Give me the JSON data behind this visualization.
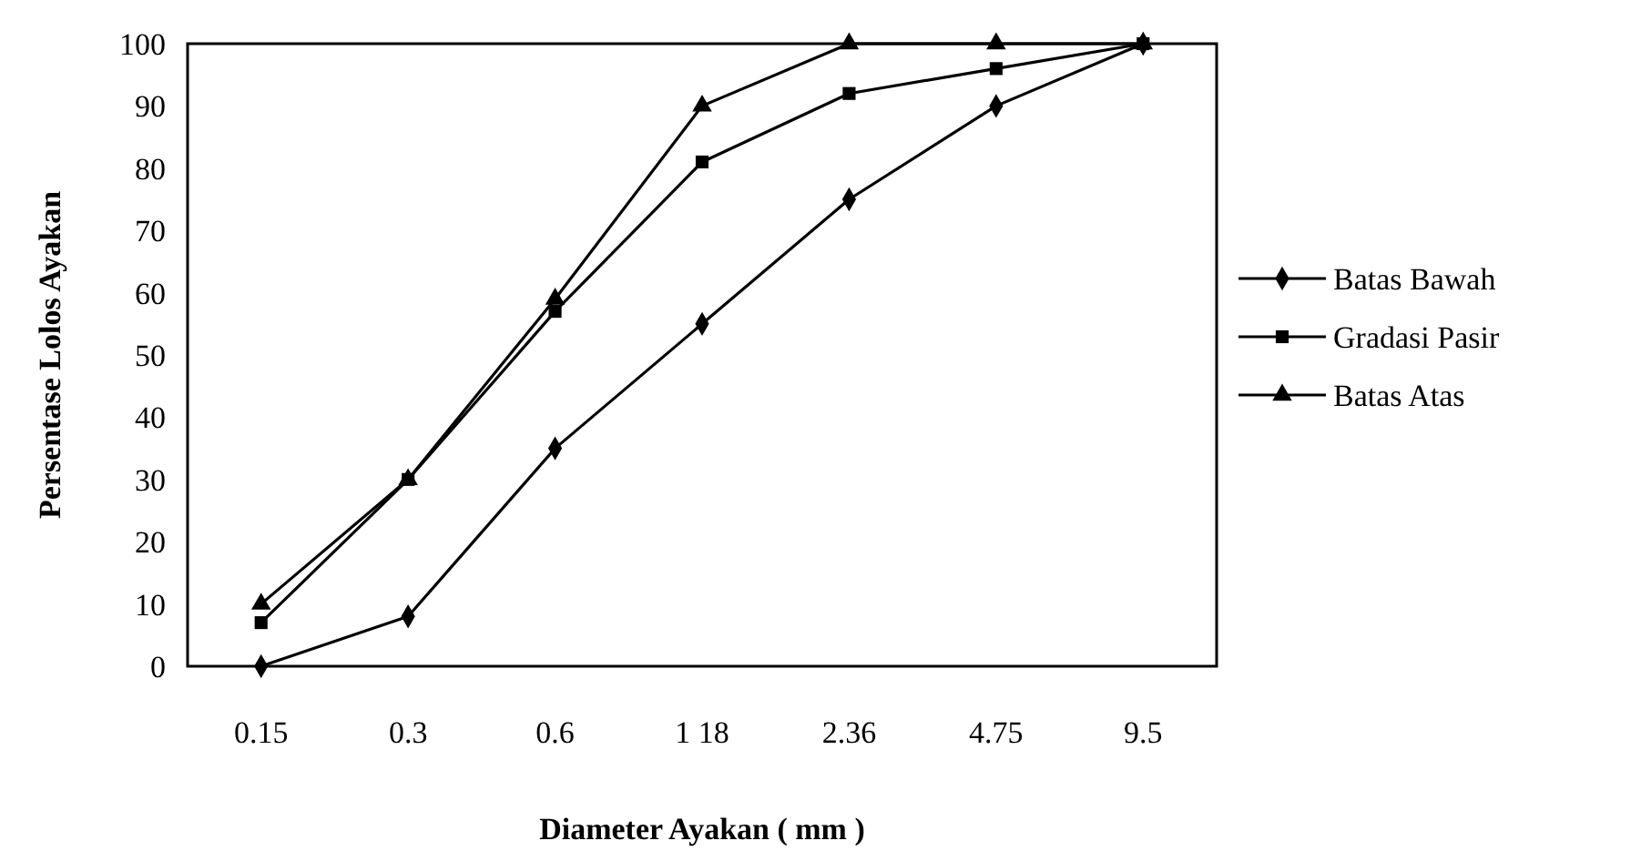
{
  "chart_data": {
    "type": "line",
    "xlabel": "Diameter Ayakan ( mm )",
    "ylabel": "Persentase Lolos Ayakan",
    "categories": [
      "0.15",
      "0.3",
      "0.6",
      "1 18",
      "2.36",
      "4.75",
      "9.5"
    ],
    "ylim": [
      0,
      100
    ],
    "yticks": [
      0,
      10,
      20,
      30,
      40,
      50,
      60,
      70,
      80,
      90,
      100
    ],
    "grid": false,
    "legend": "right",
    "line_style": "solid",
    "series": [
      {
        "name": "Batas Bawah",
        "color": "#000000",
        "marker": "diamond",
        "values": [
          0,
          8,
          35,
          55,
          75,
          90,
          100
        ]
      },
      {
        "name": "Gradasi Pasir",
        "color": "#000000",
        "marker": "square",
        "values": [
          7,
          30,
          57,
          81,
          92,
          96,
          100
        ]
      },
      {
        "name": "Batas Atas",
        "color": "#000000",
        "marker": "triangle",
        "values": [
          10,
          30,
          59,
          90,
          100,
          100,
          100
        ]
      }
    ]
  }
}
